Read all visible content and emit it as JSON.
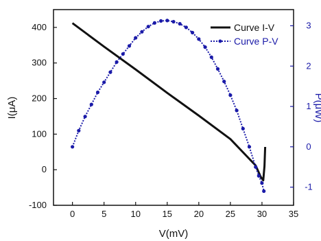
{
  "chart_data": {
    "type": "line",
    "title": "",
    "xlabel": "V(mV)",
    "ylabel_left": "I(μA)",
    "ylabel_right": "P(μW)",
    "xlim": [
      -3,
      35
    ],
    "ylim_left": [
      -100,
      450
    ],
    "ylim_right": [
      -1.45,
      3.4
    ],
    "x_ticks": [
      0,
      5,
      10,
      15,
      20,
      25,
      30,
      35
    ],
    "y_left_ticks": [
      -100,
      0,
      100,
      200,
      300,
      400
    ],
    "y_right_ticks": [
      -1,
      0,
      1,
      2,
      3
    ],
    "grid": false,
    "legend_position": "top-right",
    "colors": {
      "iv": "#111111",
      "pv": "#1a1aa8",
      "axis_right": "#1a1aa8",
      "axis": "#111111"
    },
    "series": [
      {
        "name": "Curve I-V",
        "axis": "left",
        "x": [
          0,
          5,
          10,
          15,
          20,
          25,
          29,
          29.8,
          30.2,
          30.4,
          30.5
        ],
        "y": [
          412,
          346,
          282,
          216,
          152,
          86,
          12,
          -20,
          -30,
          10,
          64
        ]
      },
      {
        "name": "Curve P-V",
        "axis": "right",
        "x": [
          0,
          1,
          2,
          3,
          4,
          5,
          6,
          7,
          8,
          9,
          10,
          11,
          12,
          13,
          14,
          15,
          16,
          17,
          18,
          19,
          20,
          21,
          22,
          23,
          24,
          25,
          26,
          27,
          28,
          29,
          29.5,
          30,
          30.3
        ],
        "y": [
          0.0,
          0.4,
          0.75,
          1.05,
          1.35,
          1.6,
          1.85,
          2.1,
          2.3,
          2.5,
          2.7,
          2.85,
          2.98,
          3.07,
          3.12,
          3.13,
          3.1,
          3.05,
          2.96,
          2.83,
          2.67,
          2.47,
          2.22,
          1.93,
          1.62,
          1.28,
          0.9,
          0.45,
          0.0,
          -0.5,
          -0.72,
          -0.9,
          -1.1
        ]
      }
    ]
  }
}
